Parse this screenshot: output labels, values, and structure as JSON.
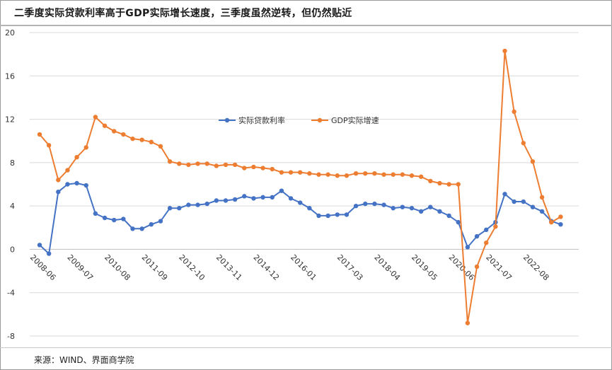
{
  "title": "二季度实际贷款利率高于GDP实际增长速度，三季度虽然逆转，但仍然贴近",
  "source": "来源：WIND、界面商学院",
  "colors": {
    "series1": "#4472C4",
    "series2": "#ED7D31",
    "grid": "#d9d9d9",
    "axis": "#bfbfbf",
    "text": "#333333"
  },
  "chart_data": {
    "type": "line",
    "ylim": [
      -8,
      20
    ],
    "yticks": [
      "-8",
      "-4",
      "0",
      "4",
      "8",
      "12",
      "16",
      "20"
    ],
    "xtick_labels": [
      "2008-06",
      "2009-07",
      "2010-08",
      "2011-09",
      "2012-10",
      "2013-11",
      "2014-12",
      "2016-01",
      "2017-03",
      "2018-04",
      "2019-05",
      "2020-06",
      "2021-07",
      "2022-08"
    ],
    "xtick_index": [
      0,
      4,
      8,
      12,
      16,
      20,
      24,
      28,
      33,
      37,
      41,
      45,
      49,
      53
    ],
    "legend_position": "center",
    "grid": true,
    "series": [
      {
        "name": "实际贷款利率",
        "color": "#4472C4",
        "values": [
          0.4,
          -0.4,
          5.3,
          6.0,
          6.1,
          5.9,
          3.3,
          2.9,
          2.7,
          2.8,
          1.9,
          1.9,
          2.3,
          2.6,
          3.8,
          3.8,
          4.1,
          4.1,
          4.2,
          4.5,
          4.5,
          4.6,
          4.9,
          4.7,
          4.8,
          4.8,
          5.4,
          4.7,
          4.3,
          3.8,
          3.1,
          3.1,
          3.2,
          3.2,
          4.0,
          4.2,
          4.2,
          4.1,
          3.8,
          3.9,
          3.8,
          3.5,
          3.9,
          3.5,
          3.1,
          2.5,
          0.2,
          1.2,
          1.8,
          2.5,
          5.1,
          4.4,
          4.4,
          3.9,
          3.5,
          2.6,
          2.3
        ]
      },
      {
        "name": "GDP实际增速",
        "color": "#ED7D31",
        "values": [
          10.6,
          9.6,
          6.4,
          7.3,
          8.5,
          9.4,
          12.2,
          11.4,
          10.9,
          10.6,
          10.2,
          10.1,
          9.9,
          9.5,
          8.1,
          7.9,
          7.8,
          7.9,
          7.9,
          7.7,
          7.8,
          7.8,
          7.5,
          7.6,
          7.5,
          7.4,
          7.1,
          7.1,
          7.1,
          7.0,
          6.9,
          6.9,
          6.8,
          6.8,
          7.0,
          7.0,
          7.0,
          6.9,
          6.9,
          6.9,
          6.8,
          6.7,
          6.3,
          6.1,
          6.0,
          6.0,
          -6.8,
          -1.6,
          0.6,
          2.1,
          18.3,
          12.7,
          9.8,
          8.1,
          4.8,
          2.5,
          3.0
        ]
      }
    ]
  }
}
